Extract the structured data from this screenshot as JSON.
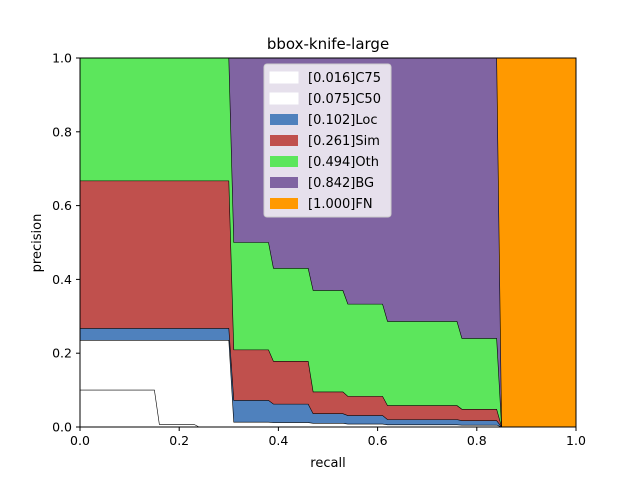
{
  "chart_data": {
    "type": "area",
    "title": "bbox-knife-large",
    "xlabel": "recall",
    "ylabel": "precision",
    "xlim": [
      0,
      1
    ],
    "ylim": [
      0,
      1
    ],
    "x_ticks": [
      "0.0",
      "0.2",
      "0.4",
      "0.6",
      "0.8",
      "1.0"
    ],
    "y_ticks": [
      "0.0",
      "0.2",
      "0.4",
      "0.6",
      "0.8",
      "1.0"
    ],
    "legend_position": "top-center",
    "series": [
      {
        "label": "[1.000]FN",
        "color": "#ff9900",
        "points": [
          [
            0,
            1.0
          ],
          [
            1.0,
            1.0
          ]
        ]
      },
      {
        "label": "[0.842]BG",
        "color": "#8064a2",
        "points": [
          [
            0,
            1.0
          ],
          [
            0.3,
            1.0
          ],
          [
            0.31,
            1.0
          ],
          [
            0.38,
            1.0
          ],
          [
            0.39,
            1.0
          ],
          [
            0.47,
            1.0
          ],
          [
            0.53,
            1.0
          ],
          [
            0.61,
            1.0
          ],
          [
            0.62,
            1.0
          ],
          [
            0.76,
            1.0
          ],
          [
            0.77,
            1.0
          ],
          [
            0.84,
            1.0
          ],
          [
            0.85,
            0.0
          ],
          [
            1.0,
            0.0
          ]
        ]
      },
      {
        "label": "[0.494]Oth",
        "color": "#5ce65c",
        "points": [
          [
            0,
            1.0
          ],
          [
            0.3,
            1.0
          ],
          [
            0.31,
            0.5
          ],
          [
            0.38,
            0.5
          ],
          [
            0.39,
            0.43
          ],
          [
            0.46,
            0.43
          ],
          [
            0.47,
            0.37
          ],
          [
            0.53,
            0.37
          ],
          [
            0.54,
            0.333
          ],
          [
            0.61,
            0.333
          ],
          [
            0.62,
            0.286
          ],
          [
            0.76,
            0.286
          ],
          [
            0.77,
            0.24
          ],
          [
            0.84,
            0.24
          ],
          [
            0.85,
            0.0
          ],
          [
            1.0,
            0.0
          ]
        ]
      },
      {
        "label": "[0.261]Sim",
        "color": "#c0504d",
        "points": [
          [
            0,
            0.667
          ],
          [
            0.3,
            0.667
          ],
          [
            0.31,
            0.209
          ],
          [
            0.38,
            0.209
          ],
          [
            0.39,
            0.178
          ],
          [
            0.46,
            0.178
          ],
          [
            0.47,
            0.095
          ],
          [
            0.53,
            0.095
          ],
          [
            0.54,
            0.083
          ],
          [
            0.61,
            0.083
          ],
          [
            0.62,
            0.058
          ],
          [
            0.76,
            0.058
          ],
          [
            0.77,
            0.048
          ],
          [
            0.84,
            0.048
          ],
          [
            0.85,
            0.0
          ],
          [
            1.0,
            0.0
          ]
        ]
      },
      {
        "label": "[0.102]Loc",
        "color": "#4f81bd",
        "points": [
          [
            0,
            0.267
          ],
          [
            0.3,
            0.267
          ],
          [
            0.31,
            0.072
          ],
          [
            0.38,
            0.072
          ],
          [
            0.39,
            0.062
          ],
          [
            0.46,
            0.062
          ],
          [
            0.47,
            0.036
          ],
          [
            0.53,
            0.036
          ],
          [
            0.54,
            0.031
          ],
          [
            0.61,
            0.031
          ],
          [
            0.62,
            0.02
          ],
          [
            0.76,
            0.02
          ],
          [
            0.77,
            0.017
          ],
          [
            0.84,
            0.017
          ],
          [
            0.85,
            0.0
          ],
          [
            1.0,
            0.0
          ]
        ]
      },
      {
        "label": "[0.075]C50",
        "color": "#ffffff",
        "points": [
          [
            0,
            0.235
          ],
          [
            0.3,
            0.235
          ],
          [
            0.31,
            0.013
          ],
          [
            0.38,
            0.013
          ],
          [
            0.39,
            0.012
          ],
          [
            0.46,
            0.012
          ],
          [
            0.47,
            0.01
          ],
          [
            0.53,
            0.01
          ],
          [
            0.54,
            0.008
          ],
          [
            0.61,
            0.008
          ],
          [
            0.62,
            0.006
          ],
          [
            0.76,
            0.006
          ],
          [
            0.77,
            0.005
          ],
          [
            0.84,
            0.005
          ],
          [
            0.85,
            0.0
          ],
          [
            1.0,
            0.0
          ]
        ]
      },
      {
        "label": "[0.016]C75",
        "color": "#ffffff",
        "points": [
          [
            0,
            0.1
          ],
          [
            0.15,
            0.1
          ],
          [
            0.16,
            0.007
          ],
          [
            0.23,
            0.007
          ],
          [
            0.24,
            0.0
          ],
          [
            1.0,
            0.0
          ]
        ]
      }
    ]
  }
}
